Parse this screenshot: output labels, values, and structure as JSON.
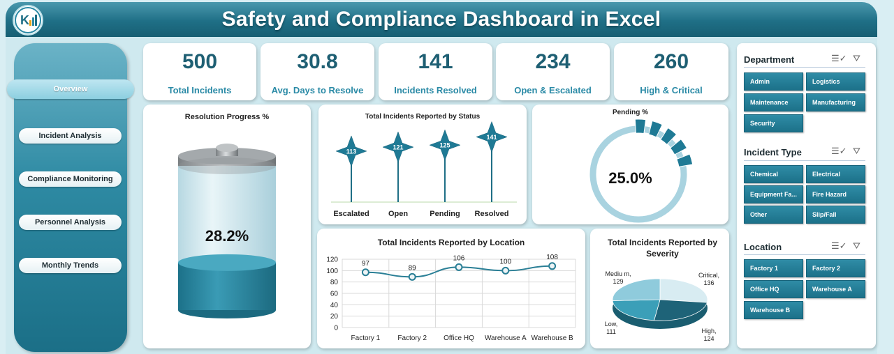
{
  "header": {
    "title": "Safety and Compliance Dashboard in Excel",
    "logo_icon": "chart-logo-icon"
  },
  "nav": {
    "items": [
      {
        "label": "Overview",
        "active": true
      },
      {
        "label": "Incident Analysis"
      },
      {
        "label": "Compliance Monitoring"
      },
      {
        "label": "Personnel Analysis"
      },
      {
        "label": "Monthly Trends"
      }
    ]
  },
  "kpis": [
    {
      "value": "500",
      "label": "Total Incidents"
    },
    {
      "value": "30.8",
      "label": "Avg. Days to Resolve"
    },
    {
      "value": "141",
      "label": "Incidents Resolved"
    },
    {
      "value": "234",
      "label": "Open & Escalated"
    },
    {
      "value": "260",
      "label": "High & Critical"
    }
  ],
  "resolution": {
    "title": "Resolution Progress %",
    "value_label": "28.2%",
    "fill_fraction": 0.282
  },
  "pending": {
    "title": "Pending %",
    "value_label": "25.0%",
    "fraction": 0.25
  },
  "slicers": [
    {
      "title": "Department",
      "items": [
        "Admin",
        "Logistics",
        "Maintenance",
        "Manufacturing",
        "Security"
      ]
    },
    {
      "title": "Incident Type",
      "items": [
        "Chemical",
        "Electrical",
        "Equipment Fa...",
        "Fire Hazard",
        "Other",
        "Slip/Fall"
      ]
    },
    {
      "title": "Location",
      "items": [
        "Factory 1",
        "Factory 2",
        "Office HQ",
        "Warehouse A",
        "Warehouse B"
      ]
    }
  ],
  "colors": {
    "primary": "#1f6f86",
    "accent": "#2a8aa6",
    "light": "#a9d3e0"
  },
  "chart_data": [
    {
      "type": "bar",
      "title": "Total Incidents Reported by Status",
      "categories": [
        "Escalated",
        "Open",
        "Pending",
        "Resolved"
      ],
      "values": [
        113,
        121,
        125,
        141
      ]
    },
    {
      "type": "line",
      "title": "Total Incidents Reported by Location",
      "categories": [
        "Factory 1",
        "Factory 2",
        "Office HQ",
        "Warehouse A",
        "Warehouse B"
      ],
      "values": [
        97,
        89,
        106,
        100,
        108
      ],
      "ylim": [
        0,
        120
      ],
      "yticks": [
        0,
        20,
        40,
        60,
        80,
        100,
        120
      ],
      "grid": true
    },
    {
      "type": "pie",
      "title": "Total Incidents Reported by Severity",
      "slices": [
        {
          "label": "Critical",
          "value": 136,
          "text": "Critical, 136",
          "color": "#d8ecf2"
        },
        {
          "label": "High",
          "value": 124,
          "text": "High, 124",
          "color": "#1e6378"
        },
        {
          "label": "Low",
          "value": 111,
          "text": "Low, 111",
          "color": "#3b9fb8"
        },
        {
          "label": "Medium",
          "value": 129,
          "text": "Mediu m, 129",
          "color": "#8fcbdc"
        }
      ]
    }
  ]
}
